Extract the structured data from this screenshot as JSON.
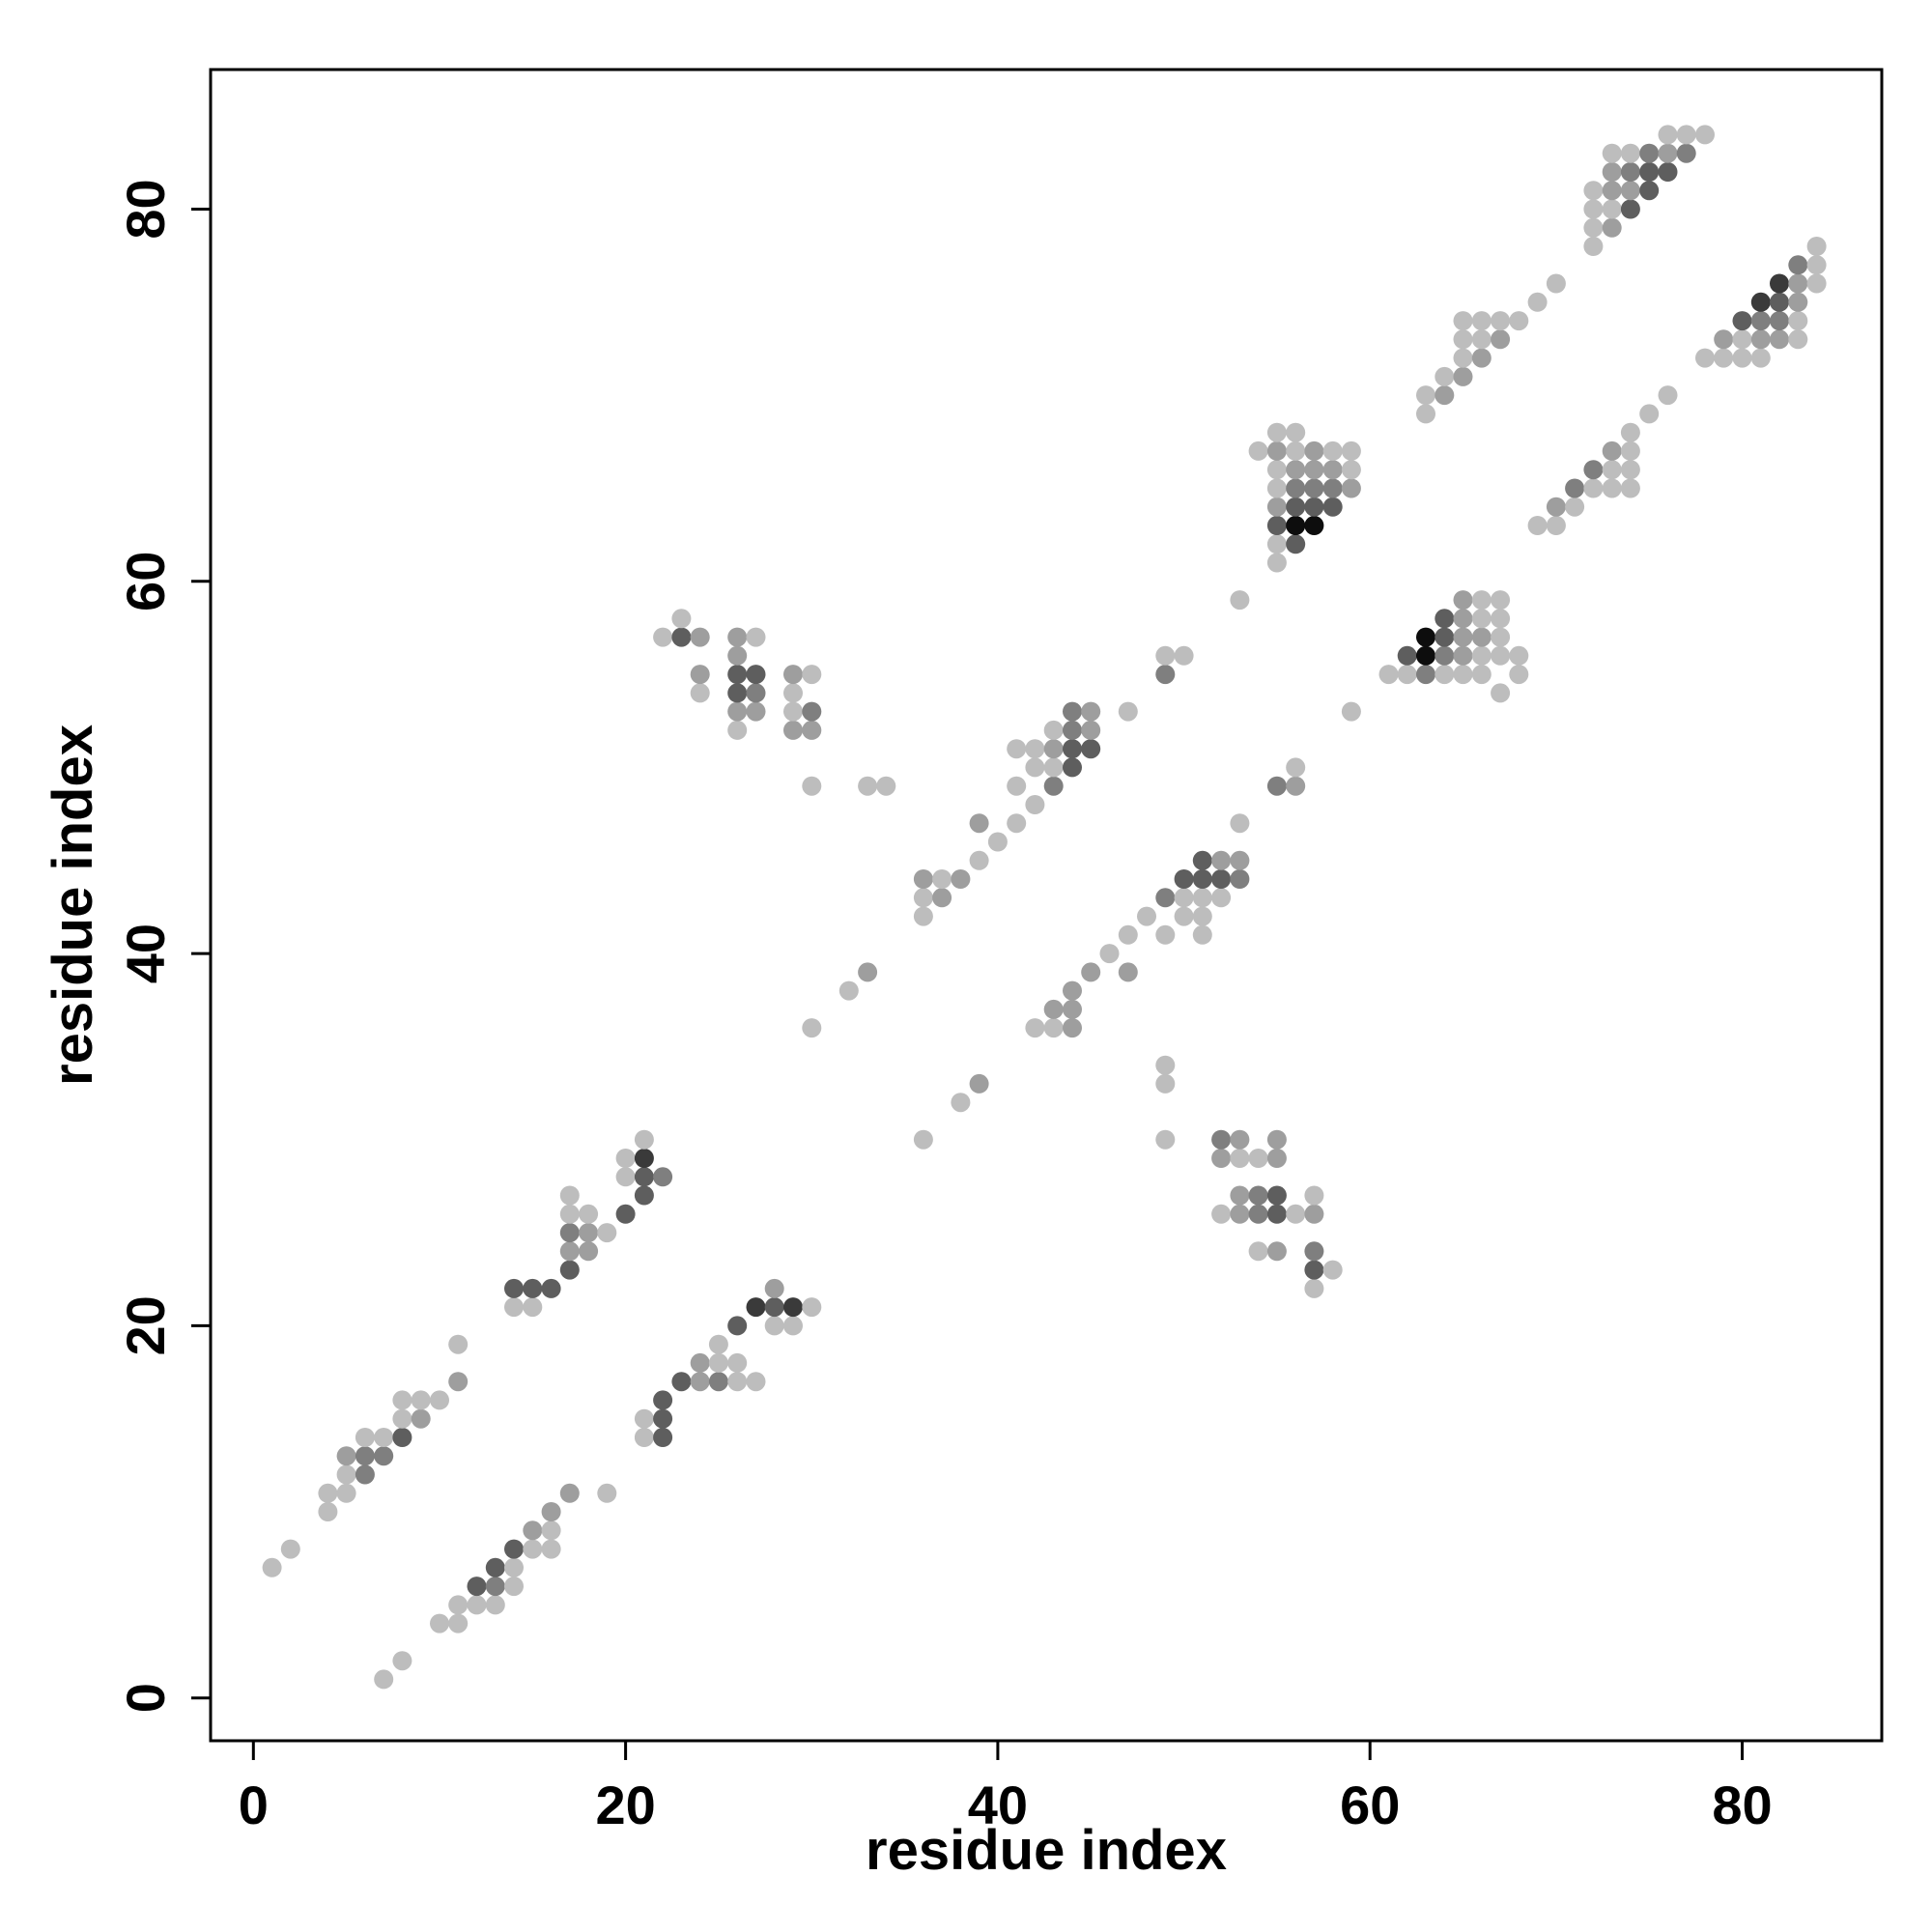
{
  "chart_data": {
    "type": "scatter",
    "title": "",
    "xlabel": "residue index",
    "ylabel": "residue index",
    "xlim": [
      -2.3,
      87.5
    ],
    "ylim": [
      -2.3,
      87.5
    ],
    "xticks": [
      0,
      20,
      40,
      60,
      80
    ],
    "yticks": [
      0,
      20,
      40,
      60,
      80
    ],
    "grid": false,
    "legend": "none",
    "shade_scale": {
      "1": "#bdbdbd",
      "2": "#9e9e9e",
      "3": "#7f7f7f",
      "4": "#5e5e5e",
      "5": "#3a3a3a",
      "6": "#0d0d0d"
    },
    "points": [
      [
        1,
        7,
        1
      ],
      [
        2,
        8,
        1
      ],
      [
        7,
        1,
        1
      ],
      [
        8,
        2,
        1
      ],
      [
        4,
        10,
        1
      ],
      [
        4,
        11,
        1
      ],
      [
        5,
        11,
        1
      ],
      [
        5,
        12,
        1
      ],
      [
        5,
        13,
        2
      ],
      [
        6,
        12,
        3
      ],
      [
        6,
        13,
        3
      ],
      [
        6,
        14,
        1
      ],
      [
        7,
        13,
        3
      ],
      [
        7,
        14,
        1
      ],
      [
        8,
        14,
        4
      ],
      [
        8,
        15,
        1
      ],
      [
        8,
        16,
        1
      ],
      [
        9,
        15,
        2
      ],
      [
        9,
        16,
        1
      ],
      [
        10,
        16,
        1
      ],
      [
        11,
        17,
        2
      ],
      [
        11,
        19,
        1
      ],
      [
        10,
        4,
        1
      ],
      [
        11,
        4,
        1
      ],
      [
        11,
        5,
        1
      ],
      [
        12,
        5,
        1
      ],
      [
        12,
        6,
        4
      ],
      [
        13,
        5,
        1
      ],
      [
        13,
        6,
        3
      ],
      [
        13,
        7,
        4
      ],
      [
        14,
        6,
        1
      ],
      [
        14,
        7,
        1
      ],
      [
        14,
        8,
        4
      ],
      [
        15,
        8,
        1
      ],
      [
        15,
        9,
        2
      ],
      [
        16,
        8,
        1
      ],
      [
        16,
        9,
        1
      ],
      [
        16,
        10,
        2
      ],
      [
        17,
        11,
        2
      ],
      [
        19,
        11,
        1
      ],
      [
        14,
        21,
        1
      ],
      [
        14,
        22,
        4
      ],
      [
        15,
        21,
        1
      ],
      [
        15,
        22,
        4
      ],
      [
        16,
        22,
        4
      ],
      [
        17,
        23,
        4
      ],
      [
        17,
        24,
        2
      ],
      [
        17,
        25,
        3
      ],
      [
        17,
        26,
        1
      ],
      [
        17,
        27,
        1
      ],
      [
        18,
        24,
        2
      ],
      [
        18,
        25,
        2
      ],
      [
        18,
        26,
        1
      ],
      [
        19,
        25,
        1
      ],
      [
        20,
        26,
        4
      ],
      [
        20,
        28,
        1
      ],
      [
        20,
        29,
        1
      ],
      [
        21,
        27,
        4
      ],
      [
        21,
        28,
        4
      ],
      [
        21,
        29,
        5
      ],
      [
        21,
        30,
        1
      ],
      [
        22,
        28,
        3
      ],
      [
        21,
        14,
        1
      ],
      [
        21,
        15,
        1
      ],
      [
        22,
        14,
        4
      ],
      [
        22,
        15,
        4
      ],
      [
        22,
        16,
        4
      ],
      [
        23,
        17,
        4
      ],
      [
        24,
        17,
        2
      ],
      [
        24,
        18,
        2
      ],
      [
        25,
        17,
        3
      ],
      [
        25,
        18,
        1
      ],
      [
        25,
        19,
        1
      ],
      [
        26,
        17,
        1
      ],
      [
        26,
        18,
        1
      ],
      [
        26,
        20,
        4
      ],
      [
        27,
        17,
        1
      ],
      [
        27,
        21,
        5
      ],
      [
        28,
        20,
        1
      ],
      [
        28,
        21,
        4
      ],
      [
        28,
        22,
        2
      ],
      [
        29,
        20,
        1
      ],
      [
        29,
        21,
        5
      ],
      [
        30,
        21,
        1
      ],
      [
        22,
        57,
        1
      ],
      [
        23,
        57,
        4
      ],
      [
        23,
        58,
        1
      ],
      [
        24,
        54,
        1
      ],
      [
        24,
        55,
        2
      ],
      [
        24,
        57,
        2
      ],
      [
        26,
        52,
        1
      ],
      [
        26,
        53,
        2
      ],
      [
        26,
        54,
        4
      ],
      [
        26,
        55,
        4
      ],
      [
        26,
        56,
        2
      ],
      [
        26,
        57,
        2
      ],
      [
        27,
        53,
        2
      ],
      [
        27,
        54,
        3
      ],
      [
        27,
        55,
        4
      ],
      [
        27,
        57,
        1
      ],
      [
        29,
        52,
        2
      ],
      [
        29,
        53,
        1
      ],
      [
        29,
        54,
        1
      ],
      [
        29,
        55,
        2
      ],
      [
        30,
        52,
        2
      ],
      [
        30,
        53,
        3
      ],
      [
        30,
        55,
        1
      ],
      [
        30,
        49,
        1
      ],
      [
        33,
        49,
        1
      ],
      [
        34,
        49,
        1
      ],
      [
        30,
        36,
        1
      ],
      [
        32,
        38,
        1
      ],
      [
        33,
        39,
        2
      ],
      [
        36,
        42,
        1
      ],
      [
        36,
        43,
        1
      ],
      [
        36,
        44,
        2
      ],
      [
        37,
        43,
        2
      ],
      [
        37,
        44,
        1
      ],
      [
        38,
        44,
        2
      ],
      [
        39,
        45,
        1
      ],
      [
        39,
        47,
        2
      ],
      [
        40,
        46,
        1
      ],
      [
        41,
        47,
        1
      ],
      [
        41,
        49,
        1
      ],
      [
        41,
        51,
        1
      ],
      [
        42,
        48,
        1
      ],
      [
        42,
        50,
        1
      ],
      [
        42,
        51,
        1
      ],
      [
        43,
        49,
        3
      ],
      [
        43,
        50,
        1
      ],
      [
        43,
        51,
        2
      ],
      [
        43,
        52,
        1
      ],
      [
        44,
        50,
        4
      ],
      [
        44,
        51,
        4
      ],
      [
        44,
        52,
        3
      ],
      [
        44,
        53,
        3
      ],
      [
        45,
        51,
        4
      ],
      [
        45,
        52,
        2
      ],
      [
        45,
        53,
        2
      ],
      [
        47,
        53,
        1
      ],
      [
        49,
        55,
        3
      ],
      [
        49,
        56,
        1
      ],
      [
        50,
        56,
        1
      ],
      [
        53,
        59,
        1
      ],
      [
        36,
        30,
        1
      ],
      [
        38,
        32,
        1
      ],
      [
        39,
        33,
        2
      ],
      [
        42,
        36,
        1
      ],
      [
        43,
        36,
        1
      ],
      [
        43,
        37,
        2
      ],
      [
        44,
        36,
        2
      ],
      [
        44,
        37,
        2
      ],
      [
        44,
        38,
        2
      ],
      [
        45,
        39,
        2
      ],
      [
        46,
        40,
        1
      ],
      [
        47,
        39,
        2
      ],
      [
        47,
        41,
        1
      ],
      [
        48,
        42,
        1
      ],
      [
        49,
        41,
        1
      ],
      [
        49,
        43,
        3
      ],
      [
        50,
        42,
        1
      ],
      [
        50,
        43,
        1
      ],
      [
        50,
        44,
        4
      ],
      [
        51,
        41,
        1
      ],
      [
        51,
        42,
        1
      ],
      [
        51,
        43,
        1
      ],
      [
        51,
        44,
        4
      ],
      [
        51,
        45,
        4
      ],
      [
        52,
        43,
        1
      ],
      [
        52,
        44,
        4
      ],
      [
        52,
        45,
        2
      ],
      [
        53,
        44,
        3
      ],
      [
        53,
        45,
        2
      ],
      [
        53,
        47,
        1
      ],
      [
        55,
        49,
        3
      ],
      [
        56,
        49,
        2
      ],
      [
        56,
        50,
        1
      ],
      [
        59,
        53,
        1
      ],
      [
        49,
        30,
        1
      ],
      [
        49,
        33,
        1
      ],
      [
        49,
        34,
        1
      ],
      [
        52,
        26,
        1
      ],
      [
        52,
        29,
        2
      ],
      [
        52,
        30,
        3
      ],
      [
        53,
        26,
        2
      ],
      [
        53,
        27,
        2
      ],
      [
        53,
        29,
        1
      ],
      [
        53,
        30,
        2
      ],
      [
        54,
        24,
        1
      ],
      [
        54,
        26,
        3
      ],
      [
        54,
        27,
        3
      ],
      [
        54,
        29,
        1
      ],
      [
        55,
        24,
        2
      ],
      [
        55,
        26,
        4
      ],
      [
        55,
        27,
        4
      ],
      [
        55,
        29,
        2
      ],
      [
        55,
        30,
        2
      ],
      [
        56,
        26,
        1
      ],
      [
        57,
        22,
        1
      ],
      [
        57,
        23,
        4
      ],
      [
        57,
        24,
        3
      ],
      [
        57,
        26,
        2
      ],
      [
        57,
        27,
        1
      ],
      [
        58,
        23,
        1
      ],
      [
        54,
        67,
        1
      ],
      [
        55,
        61,
        1
      ],
      [
        55,
        62,
        1
      ],
      [
        55,
        63,
        4
      ],
      [
        55,
        64,
        2
      ],
      [
        55,
        65,
        1
      ],
      [
        55,
        66,
        1
      ],
      [
        55,
        67,
        2
      ],
      [
        55,
        68,
        1
      ],
      [
        56,
        62,
        4
      ],
      [
        56,
        63,
        6
      ],
      [
        56,
        64,
        4
      ],
      [
        56,
        65,
        3
      ],
      [
        56,
        66,
        2
      ],
      [
        56,
        67,
        1
      ],
      [
        56,
        68,
        1
      ],
      [
        57,
        63,
        6
      ],
      [
        57,
        64,
        4
      ],
      [
        57,
        65,
        3
      ],
      [
        57,
        66,
        2
      ],
      [
        57,
        67,
        2
      ],
      [
        58,
        64,
        4
      ],
      [
        58,
        65,
        3
      ],
      [
        58,
        66,
        2
      ],
      [
        58,
        67,
        1
      ],
      [
        59,
        65,
        2
      ],
      [
        59,
        66,
        1
      ],
      [
        59,
        67,
        1
      ],
      [
        61,
        55,
        1
      ],
      [
        62,
        55,
        1
      ],
      [
        62,
        56,
        4
      ],
      [
        63,
        55,
        3
      ],
      [
        63,
        56,
        6
      ],
      [
        63,
        57,
        6
      ],
      [
        64,
        55,
        1
      ],
      [
        64,
        56,
        3
      ],
      [
        64,
        57,
        4
      ],
      [
        64,
        58,
        4
      ],
      [
        65,
        55,
        1
      ],
      [
        65,
        56,
        2
      ],
      [
        65,
        57,
        2
      ],
      [
        65,
        58,
        2
      ],
      [
        65,
        59,
        2
      ],
      [
        66,
        55,
        1
      ],
      [
        66,
        56,
        1
      ],
      [
        66,
        57,
        2
      ],
      [
        66,
        58,
        1
      ],
      [
        66,
        59,
        1
      ],
      [
        67,
        54,
        1
      ],
      [
        67,
        56,
        1
      ],
      [
        67,
        57,
        1
      ],
      [
        67,
        58,
        1
      ],
      [
        67,
        59,
        1
      ],
      [
        68,
        55,
        1
      ],
      [
        68,
        56,
        1
      ],
      [
        63,
        69,
        1
      ],
      [
        63,
        70,
        1
      ],
      [
        64,
        70,
        2
      ],
      [
        64,
        71,
        1
      ],
      [
        65,
        71,
        2
      ],
      [
        65,
        72,
        1
      ],
      [
        65,
        73,
        1
      ],
      [
        65,
        74,
        1
      ],
      [
        66,
        72,
        2
      ],
      [
        66,
        73,
        1
      ],
      [
        66,
        74,
        1
      ],
      [
        67,
        73,
        2
      ],
      [
        67,
        74,
        1
      ],
      [
        68,
        74,
        1
      ],
      [
        69,
        75,
        1
      ],
      [
        70,
        76,
        1
      ],
      [
        69,
        63,
        1
      ],
      [
        70,
        63,
        1
      ],
      [
        70,
        64,
        2
      ],
      [
        71,
        64,
        1
      ],
      [
        71,
        65,
        3
      ],
      [
        72,
        65,
        1
      ],
      [
        72,
        66,
        3
      ],
      [
        73,
        65,
        1
      ],
      [
        73,
        66,
        1
      ],
      [
        73,
        67,
        2
      ],
      [
        74,
        65,
        1
      ],
      [
        74,
        66,
        1
      ],
      [
        74,
        67,
        1
      ],
      [
        74,
        68,
        1
      ],
      [
        75,
        69,
        1
      ],
      [
        76,
        70,
        1
      ],
      [
        72,
        78,
        1
      ],
      [
        72,
        79,
        1
      ],
      [
        72,
        80,
        1
      ],
      [
        72,
        81,
        1
      ],
      [
        73,
        79,
        2
      ],
      [
        73,
        80,
        1
      ],
      [
        73,
        81,
        2
      ],
      [
        73,
        82,
        2
      ],
      [
        73,
        83,
        1
      ],
      [
        74,
        80,
        4
      ],
      [
        74,
        81,
        2
      ],
      [
        74,
        82,
        3
      ],
      [
        74,
        83,
        1
      ],
      [
        75,
        81,
        4
      ],
      [
        75,
        82,
        4
      ],
      [
        75,
        83,
        3
      ],
      [
        76,
        82,
        4
      ],
      [
        76,
        83,
        2
      ],
      [
        76,
        84,
        1
      ],
      [
        77,
        83,
        3
      ],
      [
        77,
        84,
        1
      ],
      [
        78,
        84,
        1
      ],
      [
        78,
        72,
        1
      ],
      [
        79,
        72,
        1
      ],
      [
        79,
        73,
        2
      ],
      [
        80,
        72,
        1
      ],
      [
        80,
        73,
        1
      ],
      [
        80,
        74,
        4
      ],
      [
        81,
        72,
        1
      ],
      [
        81,
        73,
        2
      ],
      [
        81,
        74,
        3
      ],
      [
        81,
        75,
        5
      ],
      [
        82,
        73,
        2
      ],
      [
        82,
        74,
        3
      ],
      [
        82,
        75,
        4
      ],
      [
        82,
        76,
        5
      ],
      [
        83,
        73,
        1
      ],
      [
        83,
        74,
        1
      ],
      [
        83,
        75,
        2
      ],
      [
        83,
        76,
        2
      ],
      [
        83,
        77,
        3
      ],
      [
        84,
        76,
        1
      ],
      [
        84,
        77,
        1
      ],
      [
        84,
        78,
        1
      ]
    ]
  }
}
